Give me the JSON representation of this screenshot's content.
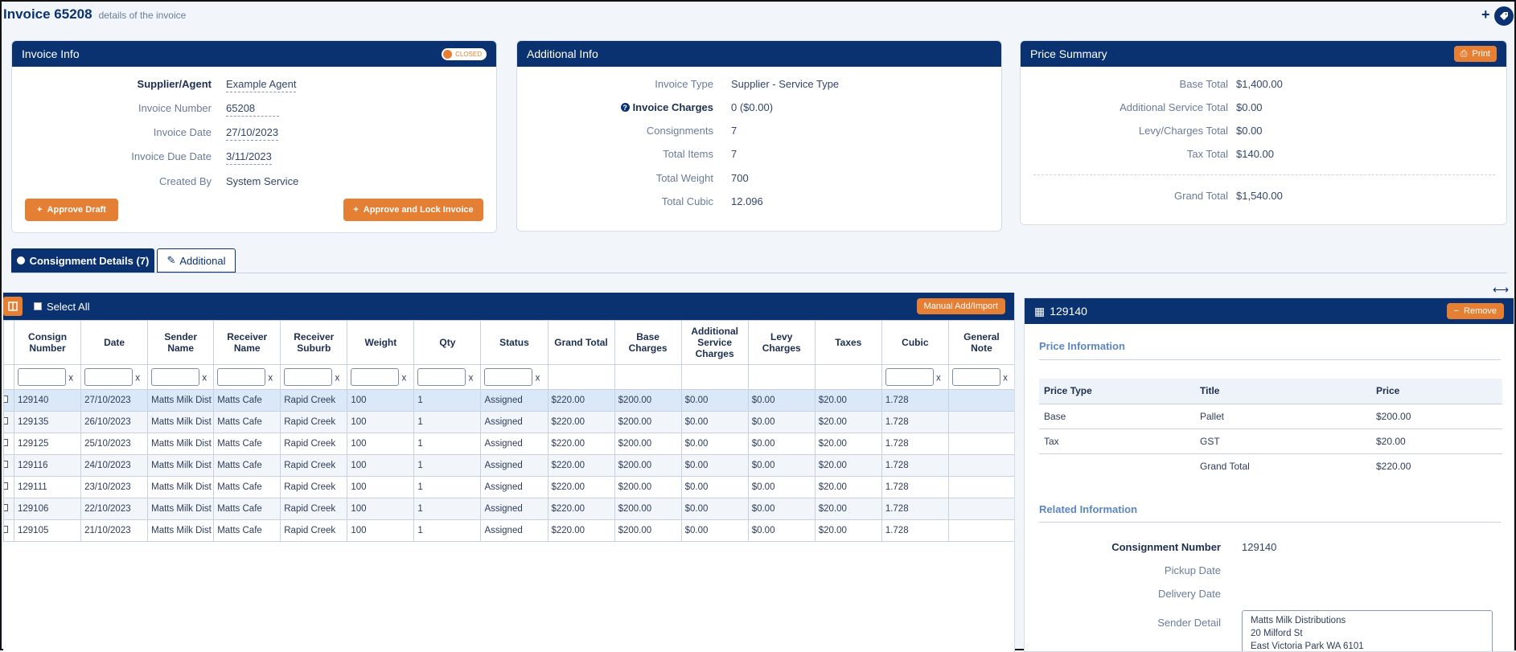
{
  "page": {
    "title": "Invoice 65208",
    "subtitle": "details of the invoice"
  },
  "invoice_info": {
    "header": "Invoice Info",
    "status_badge": "CLOSED",
    "rows": [
      {
        "label": "Supplier/Agent",
        "value": "Example Agent"
      },
      {
        "label": "Invoice Number",
        "value": "65208"
      },
      {
        "label": "Invoice Date",
        "value": "27/10/2023"
      },
      {
        "label": "Invoice Due Date",
        "value": "3/11/2023"
      },
      {
        "label": "Created By",
        "value": "System Service"
      }
    ],
    "approve_draft": "Approve Draft",
    "approve_lock": "Approve and Lock Invoice"
  },
  "additional_info": {
    "header": "Additional Info",
    "rows": [
      {
        "label": "Invoice Type",
        "value": "Supplier - Service Type"
      },
      {
        "label": "Invoice Charges",
        "value": "0 ($0.00)"
      },
      {
        "label": "Consignments",
        "value": "7"
      },
      {
        "label": "Total Items",
        "value": "7"
      },
      {
        "label": "Total Weight",
        "value": "700"
      },
      {
        "label": "Total Cubic",
        "value": "12.096"
      }
    ]
  },
  "price_summary": {
    "header": "Price Summary",
    "print": "Print",
    "rows": [
      {
        "label": "Base Total",
        "value": "$1,400.00"
      },
      {
        "label": "Additional Service Total",
        "value": "$0.00"
      },
      {
        "label": "Levy/Charges Total",
        "value": "$0.00"
      },
      {
        "label": "Tax Total",
        "value": "$140.00"
      }
    ],
    "grand_label": "Grand Total",
    "grand_value": "$1,540.00"
  },
  "tabs": [
    {
      "label": "Consignment Details (7)"
    },
    {
      "label": "Additional"
    }
  ],
  "grid": {
    "select_all": "Select All",
    "manual_add": "Manual Add/Import",
    "columns": [
      "Consign Number",
      "Date",
      "Sender Name",
      "Receiver Name",
      "Receiver Suburb",
      "Weight",
      "Qty",
      "Status",
      "Grand Total",
      "Base Charges",
      "Additional Service Charges",
      "Levy Charges",
      "Taxes",
      "Cubic",
      "General Note"
    ],
    "rows": [
      [
        "129140",
        "27/10/2023",
        "Matts Milk Dist",
        "Matts Cafe",
        "Rapid Creek",
        "100",
        "1",
        "Assigned",
        "$220.00",
        "$200.00",
        "$0.00",
        "$0.00",
        "$20.00",
        "1.728",
        ""
      ],
      [
        "129135",
        "26/10/2023",
        "Matts Milk Dist",
        "Matts Cafe",
        "Rapid Creek",
        "100",
        "1",
        "Assigned",
        "$220.00",
        "$200.00",
        "$0.00",
        "$0.00",
        "$20.00",
        "1.728",
        ""
      ],
      [
        "129125",
        "25/10/2023",
        "Matts Milk Dist",
        "Matts Cafe",
        "Rapid Creek",
        "100",
        "1",
        "Assigned",
        "$220.00",
        "$200.00",
        "$0.00",
        "$0.00",
        "$20.00",
        "1.728",
        ""
      ],
      [
        "129116",
        "24/10/2023",
        "Matts Milk Dist",
        "Matts Cafe",
        "Rapid Creek",
        "100",
        "1",
        "Assigned",
        "$220.00",
        "$200.00",
        "$0.00",
        "$0.00",
        "$20.00",
        "1.728",
        ""
      ],
      [
        "129111",
        "23/10/2023",
        "Matts Milk Dist",
        "Matts Cafe",
        "Rapid Creek",
        "100",
        "1",
        "Assigned",
        "$220.00",
        "$200.00",
        "$0.00",
        "$0.00",
        "$20.00",
        "1.728",
        ""
      ],
      [
        "129106",
        "22/10/2023",
        "Matts Milk Dist",
        "Matts Cafe",
        "Rapid Creek",
        "100",
        "1",
        "Assigned",
        "$220.00",
        "$200.00",
        "$0.00",
        "$0.00",
        "$20.00",
        "1.728",
        ""
      ],
      [
        "129105",
        "21/10/2023",
        "Matts Milk Dist",
        "Matts Cafe",
        "Rapid Creek",
        "100",
        "1",
        "Assigned",
        "$220.00",
        "$200.00",
        "$0.00",
        "$0.00",
        "$20.00",
        "1.728",
        ""
      ]
    ]
  },
  "detail_panel": {
    "header": "129140",
    "remove": "Remove",
    "price_info_title": "Price Information",
    "price_columns": [
      "Price Type",
      "Title",
      "Price"
    ],
    "price_rows": [
      [
        "Base",
        "Pallet",
        "$200.00"
      ],
      [
        "Tax",
        "GST",
        "$20.00"
      ],
      [
        "",
        "Grand Total",
        "$220.00"
      ]
    ],
    "related_title": "Related Information",
    "related_rows": [
      {
        "label": "Consignment Number",
        "value": "129140"
      },
      {
        "label": "Pickup Date",
        "value": ""
      },
      {
        "label": "Delivery Date",
        "value": ""
      }
    ],
    "sender_label": "Sender Detail",
    "sender_lines": [
      "Matts Milk Distributions",
      "20 Milford St",
      "East Victoria Park WA  6101"
    ]
  },
  "colors": {
    "navy": "#0b3270",
    "orange": "#e57f34",
    "background": "#f2f6fb"
  }
}
